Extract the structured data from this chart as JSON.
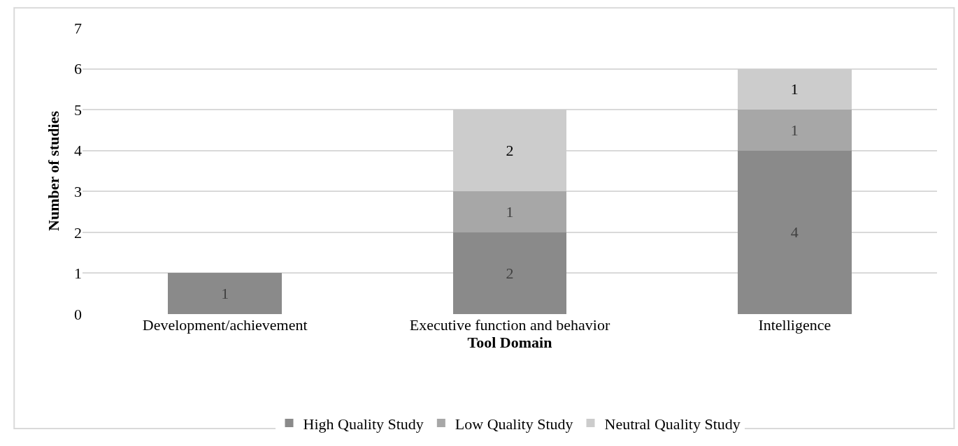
{
  "chart_data": {
    "type": "bar",
    "stacked": true,
    "xlabel": "Tool Domain",
    "ylabel": "Number of studies",
    "categories": [
      "Development/achievement",
      "Executive function and behavior",
      "Intelligence"
    ],
    "series": [
      {
        "name": "High Quality Study",
        "color": "#8a8a8a",
        "values": [
          1,
          2,
          4
        ]
      },
      {
        "name": "Low Quality Study",
        "color": "#a7a7a7",
        "values": [
          null,
          1,
          1
        ]
      },
      {
        "name": "Neutral Quality Study",
        "color": "#cccccc",
        "values": [
          null,
          2,
          1
        ]
      }
    ],
    "ylim": [
      0,
      7
    ],
    "yticks": [
      0,
      1,
      2,
      3,
      4,
      5,
      6,
      7
    ],
    "grid": "y",
    "legend": "bottom",
    "data_labels": true
  }
}
